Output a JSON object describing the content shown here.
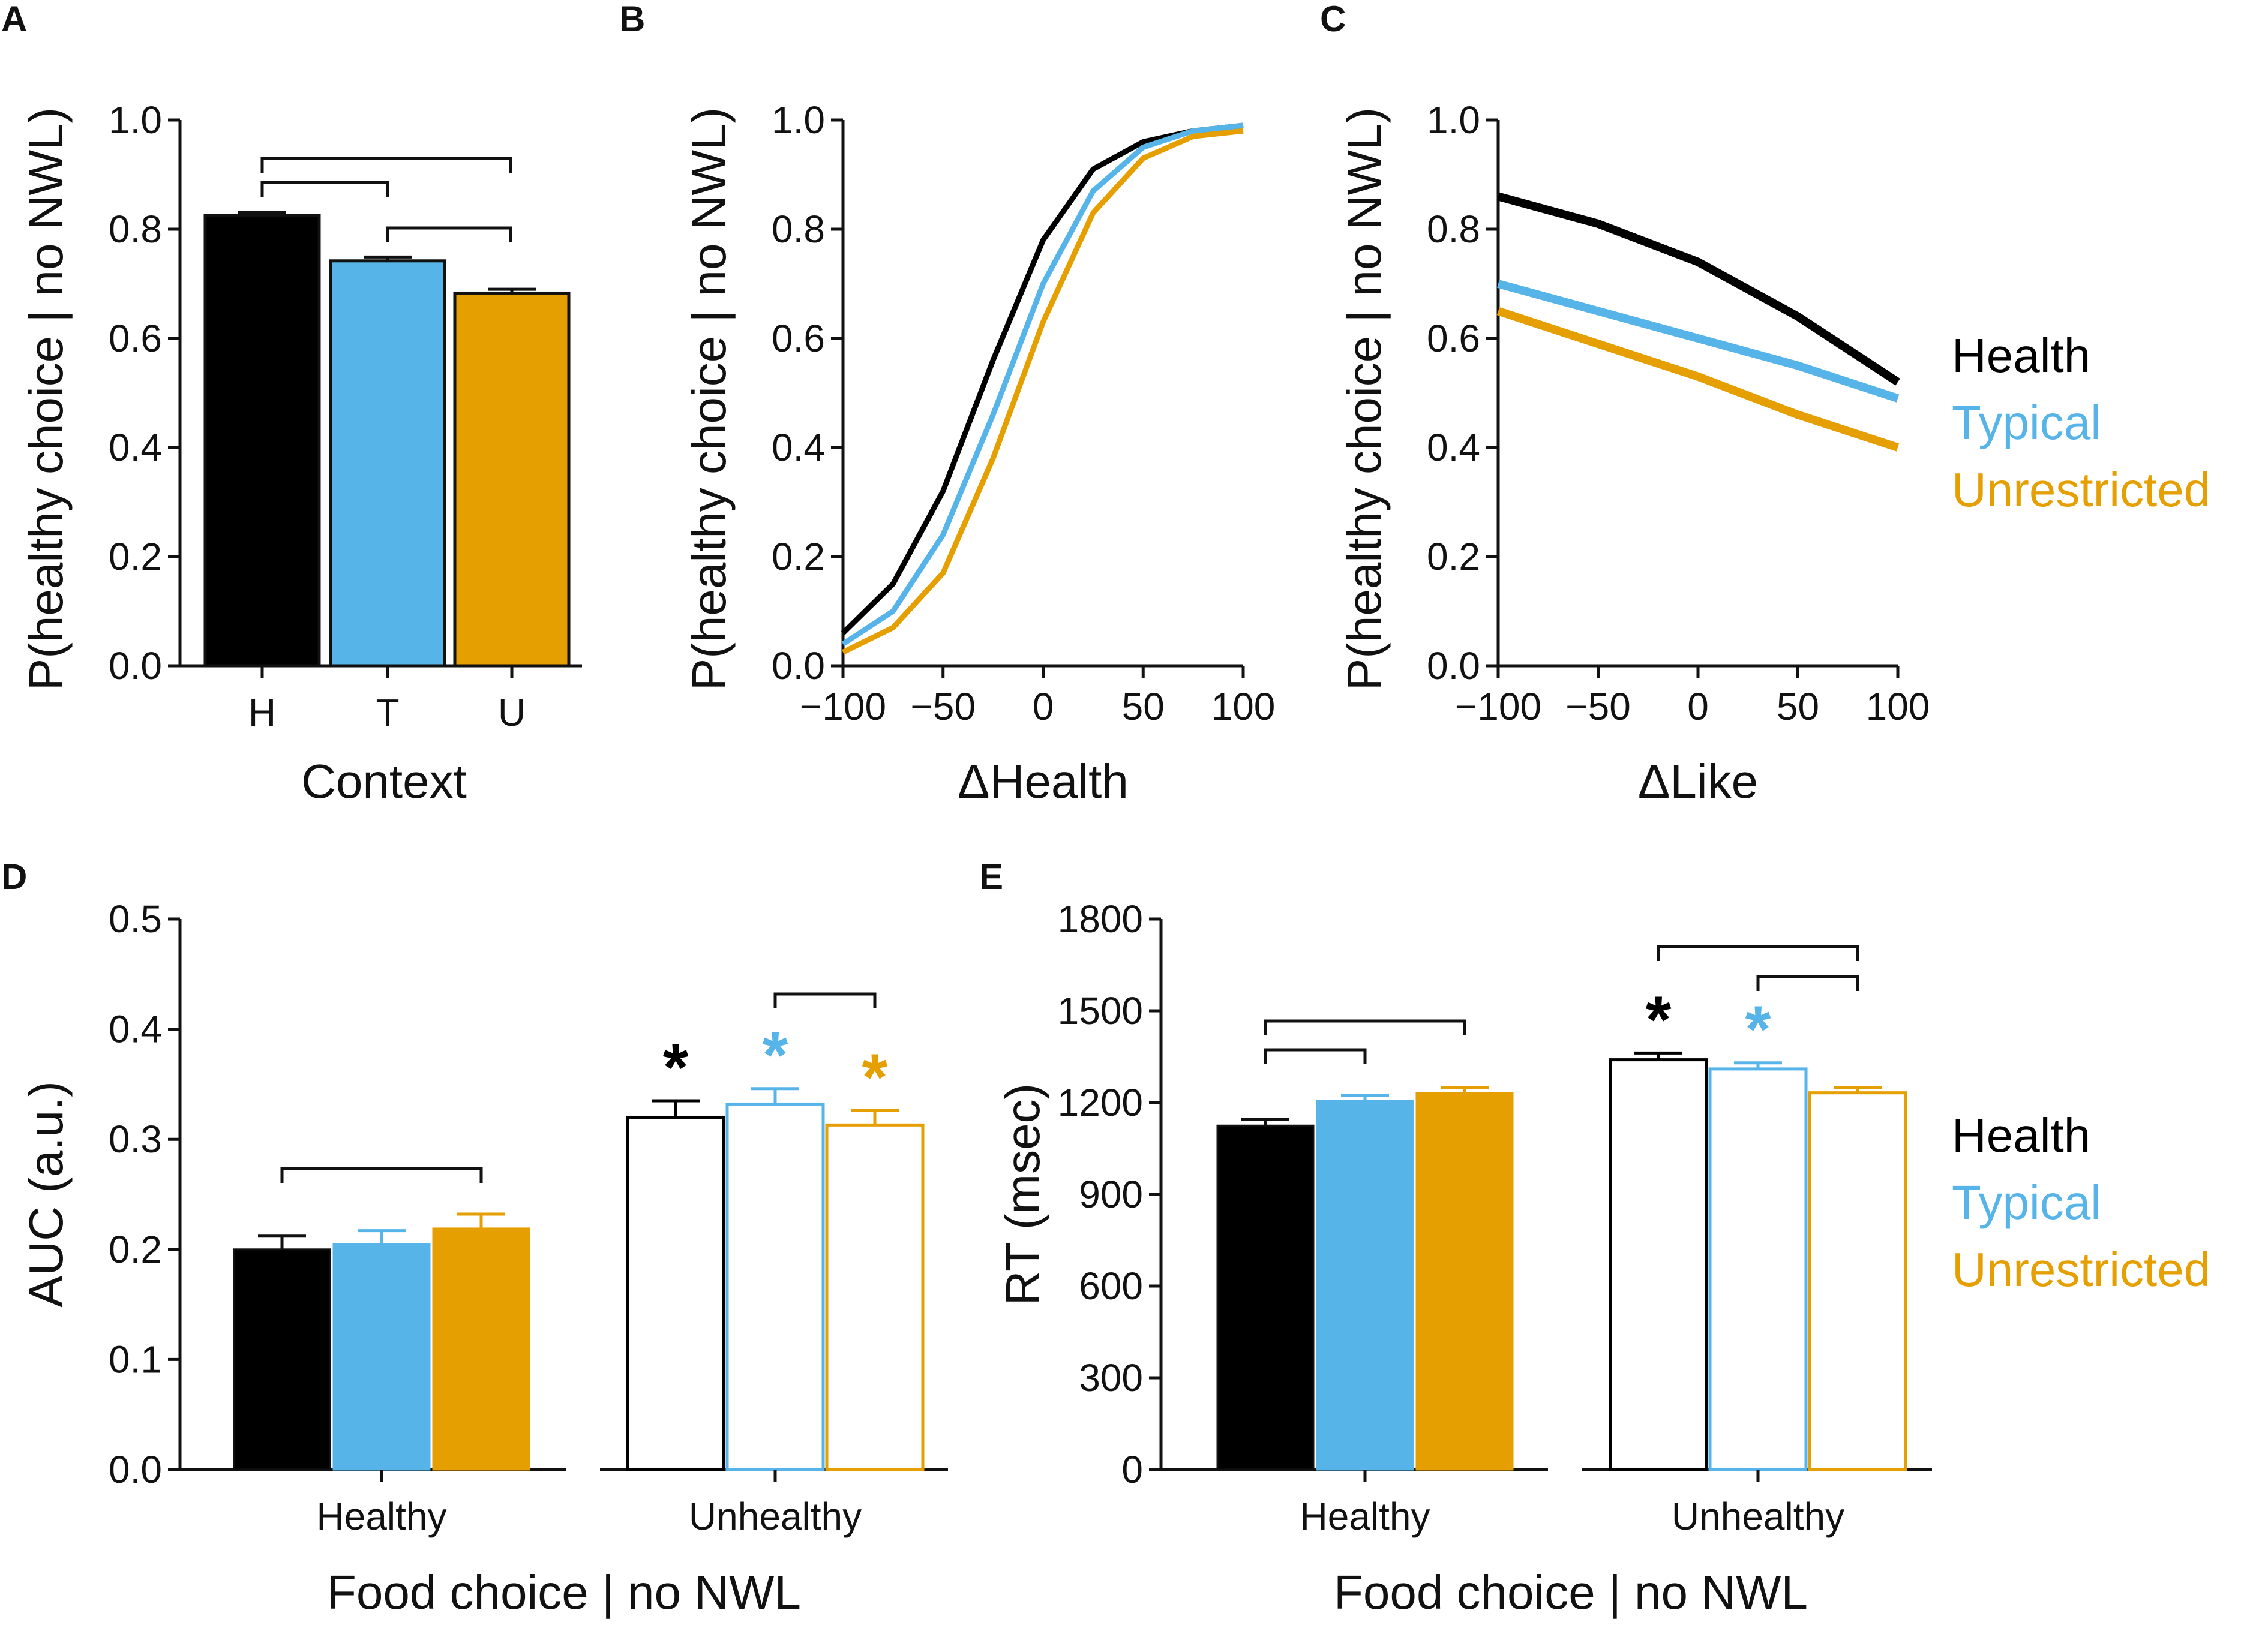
{
  "colors": {
    "health": "#000000",
    "typical": "#56b4e9",
    "unrestricted": "#e69f00"
  },
  "panel_labels": [
    "A",
    "B",
    "C",
    "D",
    "E"
  ],
  "legend": {
    "health": "Health",
    "typical": "Typical",
    "unrestricted": "Unrestricted"
  },
  "chart_data": [
    {
      "panel": "A",
      "type": "bar",
      "ylabel": "P(healthy choice | no NWL)",
      "xlabel": "Context",
      "categories": [
        "H",
        "T",
        "U"
      ],
      "values": [
        0.825,
        0.742,
        0.683
      ],
      "errors": [
        0.006,
        0.007,
        0.007
      ],
      "ylim": [
        0,
        1.0
      ],
      "yticks": [
        "0.0",
        "0.2",
        "0.4",
        "0.6",
        "0.8",
        "1.0"
      ],
      "significance": [
        [
          "H",
          "T"
        ],
        [
          "H",
          "U"
        ],
        [
          "T",
          "U"
        ]
      ]
    },
    {
      "panel": "B",
      "type": "line",
      "ylabel": "P(healthy choice | no NWL)",
      "xlabel": "ΔHealth",
      "xlim": [
        -100,
        100
      ],
      "ylim": [
        0,
        1.0
      ],
      "xticks": [
        "−100",
        "−50",
        "0",
        "50",
        "100"
      ],
      "yticks": [
        "0.0",
        "0.2",
        "0.4",
        "0.6",
        "0.8",
        "1.0"
      ],
      "x": [
        -100,
        -75,
        -50,
        -25,
        0,
        25,
        50,
        75,
        100
      ],
      "series": [
        {
          "name": "Health",
          "values": [
            0.06,
            0.15,
            0.32,
            0.56,
            0.78,
            0.91,
            0.96,
            0.98,
            0.99
          ]
        },
        {
          "name": "Typical",
          "values": [
            0.04,
            0.1,
            0.24,
            0.46,
            0.7,
            0.87,
            0.95,
            0.98,
            0.99
          ]
        },
        {
          "name": "Unrestricted",
          "values": [
            0.025,
            0.07,
            0.17,
            0.38,
            0.63,
            0.83,
            0.93,
            0.97,
            0.98
          ]
        }
      ]
    },
    {
      "panel": "C",
      "type": "line",
      "ylabel": "P(healthy choice | no NWL)",
      "xlabel": "ΔLike",
      "xlim": [
        -100,
        100
      ],
      "ylim": [
        0,
        1.0
      ],
      "xticks": [
        "−100",
        "−50",
        "0",
        "50",
        "100"
      ],
      "yticks": [
        "0.0",
        "0.2",
        "0.4",
        "0.6",
        "0.8",
        "1.0"
      ],
      "x": [
        -100,
        -50,
        0,
        50,
        100
      ],
      "series": [
        {
          "name": "Health",
          "values": [
            0.86,
            0.81,
            0.74,
            0.64,
            0.52
          ]
        },
        {
          "name": "Typical",
          "values": [
            0.7,
            0.65,
            0.6,
            0.55,
            0.49
          ]
        },
        {
          "name": "Unrestricted",
          "values": [
            0.65,
            0.59,
            0.53,
            0.46,
            0.4
          ]
        }
      ]
    },
    {
      "panel": "D",
      "type": "bar",
      "ylabel": "AUC (a.u.)",
      "xlabel": "Food choice | no NWL",
      "groups": [
        "Healthy",
        "Unhealthy"
      ],
      "series_names": [
        "Health",
        "Typical",
        "Unrestricted"
      ],
      "values": [
        [
          0.2,
          0.205,
          0.219
        ],
        [
          0.32,
          0.332,
          0.313
        ]
      ],
      "errors": [
        [
          0.012,
          0.012,
          0.013
        ],
        [
          0.015,
          0.014,
          0.013
        ]
      ],
      "ylim": [
        0,
        0.5
      ],
      "yticks": [
        "0.0",
        "0.1",
        "0.2",
        "0.3",
        "0.4",
        "0.5"
      ],
      "stars": [
        "*",
        "*",
        "*"
      ],
      "significance": [
        [
          "Healthy.Health",
          "Healthy.Unrestricted"
        ],
        [
          "Unhealthy.Typical",
          "Unhealthy.Unrestricted"
        ]
      ]
    },
    {
      "panel": "E",
      "type": "bar",
      "ylabel": "RT (msec)",
      "xlabel": "Food choice | no NWL",
      "groups": [
        "Healthy",
        "Unhealthy"
      ],
      "series_names": [
        "Health",
        "Typical",
        "Unrestricted"
      ],
      "values": [
        [
          1125,
          1205,
          1232
        ],
        [
          1340,
          1310,
          1232
        ]
      ],
      "errors": [
        [
          20,
          18,
          18
        ],
        [
          22,
          20,
          18
        ]
      ],
      "ylim": [
        0,
        1800
      ],
      "yticks": [
        "0",
        "300",
        "600",
        "900",
        "1200",
        "1500",
        "1800"
      ],
      "stars": [
        "*",
        "*"
      ],
      "significance": [
        [
          "Healthy.Health",
          "Healthy.Typical"
        ],
        [
          "Healthy.Health",
          "Healthy.Unrestricted"
        ],
        [
          "Unhealthy.Health",
          "Unhealthy.Unrestricted"
        ],
        [
          "Unhealthy.Typical",
          "Unhealthy.Unrestricted"
        ]
      ]
    }
  ]
}
